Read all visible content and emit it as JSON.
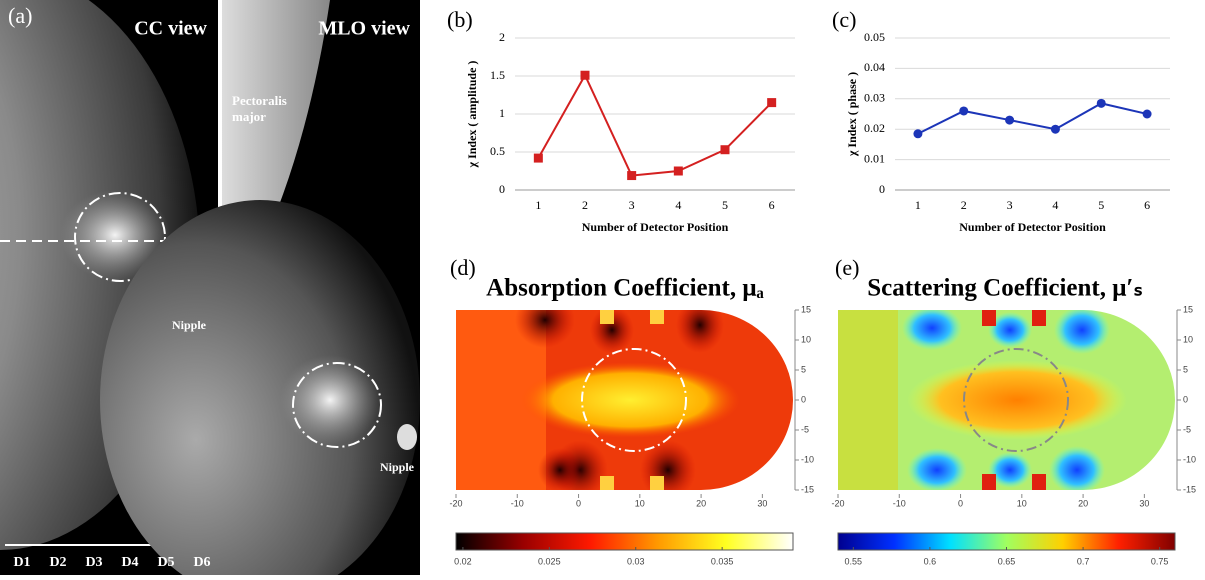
{
  "figure_a": {
    "label": "(a)",
    "cc_title": "CC view",
    "mlo_title": "MLO view",
    "pectoralis": [
      "Pectoralis",
      "major"
    ],
    "nipple_labels": [
      "Nipple",
      "Nipple"
    ],
    "detectors": [
      "D1",
      "D2",
      "D3",
      "D4",
      "D5",
      "D6"
    ]
  },
  "chart_data": [
    {
      "type": "line",
      "panel_label": "(b)",
      "categories": [
        "1",
        "2",
        "3",
        "4",
        "5",
        "6"
      ],
      "values": [
        0.42,
        1.51,
        0.19,
        0.25,
        0.53,
        1.15
      ],
      "color": "#d42020",
      "marker": "square",
      "ylim": [
        0,
        2
      ],
      "yticks": [
        0,
        0.5,
        1,
        1.5,
        2
      ],
      "grid": true,
      "y_label": "χ Index ( amplitude )",
      "x_label": "Number of Detector Position"
    },
    {
      "type": "line",
      "panel_label": "(c)",
      "categories": [
        "1",
        "2",
        "3",
        "4",
        "5",
        "6"
      ],
      "values": [
        0.0185,
        0.026,
        0.023,
        0.02,
        0.0285,
        0.025
      ],
      "color": "#1c35b8",
      "marker": "circle",
      "ylim": [
        0,
        0.05
      ],
      "yticks": [
        0,
        0.01,
        0.02,
        0.03,
        0.04,
        0.05
      ],
      "grid": true,
      "y_label": "χ Index ( phase )",
      "x_label": "Number of Detector Position"
    },
    {
      "type": "heatmap",
      "panel_label": "(d)",
      "title": "Absorption Coefficient, μₐ",
      "xlim": [
        -20,
        35
      ],
      "ylim": [
        -15,
        15
      ],
      "xticks": [
        -20,
        -10,
        0,
        10,
        20,
        30
      ],
      "yticks": [
        15,
        10,
        5,
        0,
        -5,
        -10,
        -15
      ],
      "colormap": "hot",
      "clim": [
        0.0196,
        0.0391
      ],
      "cticks": [
        0.02,
        0.025,
        0.03,
        0.035
      ]
    },
    {
      "type": "heatmap",
      "panel_label": "(e)",
      "title": "Scattering Coefficient, μ′ₛ",
      "xlim": [
        -20,
        35
      ],
      "ylim": [
        -15,
        15
      ],
      "xticks": [
        -20,
        -10,
        0,
        10,
        20,
        30
      ],
      "yticks": [
        15,
        10,
        5,
        0,
        -5,
        -10,
        -15
      ],
      "colormap": "jet",
      "clim": [
        0.54,
        0.76
      ],
      "cticks": [
        0.55,
        0.6,
        0.65,
        0.7,
        0.75
      ]
    }
  ]
}
